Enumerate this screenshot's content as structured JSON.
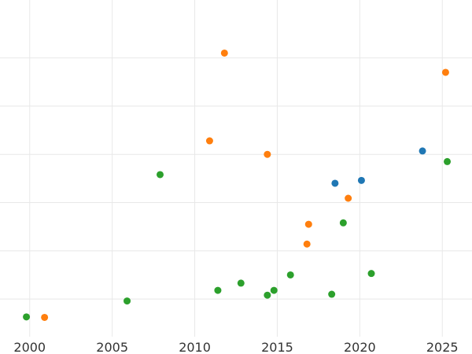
{
  "chart_data": {
    "type": "scatter",
    "title": "",
    "xlabel": "",
    "ylabel": "",
    "grid": true,
    "xlim": [
      1998.2,
      2026.8
    ],
    "ylim": [
      0.35,
      7.2
    ],
    "x_ticks": [
      "2000",
      "2005",
      "2010",
      "2015",
      "2020",
      "2025"
    ],
    "x_tick_values": [
      2000,
      2005,
      2010,
      2015,
      2020,
      2025
    ],
    "y_tick_values": [
      1,
      2,
      3,
      4,
      5,
      6
    ],
    "series": [
      {
        "color": "#1f77b4",
        "points": [
          {
            "x": 2018.5,
            "y": 3.4
          },
          {
            "x": 2020.1,
            "y": 3.46
          },
          {
            "x": 2023.8,
            "y": 4.07
          }
        ]
      },
      {
        "color": "#ff7f0e",
        "points": [
          {
            "x": 2000.9,
            "y": 0.62
          },
          {
            "x": 2010.9,
            "y": 4.28
          },
          {
            "x": 2011.8,
            "y": 6.1
          },
          {
            "x": 2014.4,
            "y": 4.0
          },
          {
            "x": 2016.8,
            "y": 2.14
          },
          {
            "x": 2016.9,
            "y": 2.55
          },
          {
            "x": 2019.3,
            "y": 3.09
          },
          {
            "x": 2025.2,
            "y": 5.7
          }
        ]
      },
      {
        "color": "#2ca02c",
        "points": [
          {
            "x": 1999.8,
            "y": 0.63
          },
          {
            "x": 2005.9,
            "y": 0.96
          },
          {
            "x": 2007.9,
            "y": 3.58
          },
          {
            "x": 2011.4,
            "y": 1.18
          },
          {
            "x": 2012.8,
            "y": 1.33
          },
          {
            "x": 2014.4,
            "y": 1.08
          },
          {
            "x": 2014.8,
            "y": 1.18
          },
          {
            "x": 2015.8,
            "y": 1.5
          },
          {
            "x": 2018.3,
            "y": 1.1
          },
          {
            "x": 2019.0,
            "y": 2.58
          },
          {
            "x": 2020.7,
            "y": 1.53
          },
          {
            "x": 2025.3,
            "y": 3.85
          }
        ]
      }
    ]
  }
}
